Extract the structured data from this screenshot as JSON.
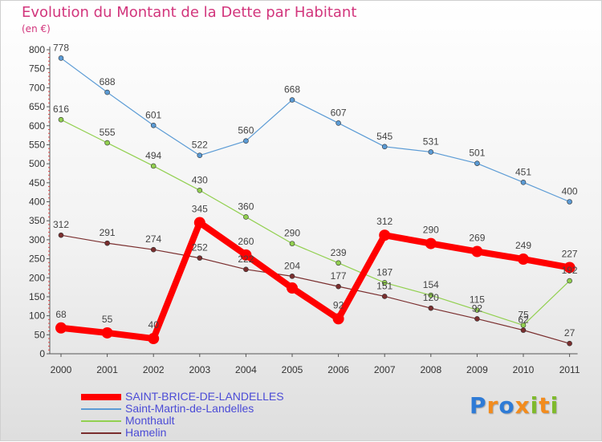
{
  "chart_data": {
    "type": "line",
    "title": "Evolution du Montant de la Dette par Habitant",
    "subtitle": "(en €)",
    "x": [
      "2000",
      "2001",
      "2002",
      "2003",
      "2004",
      "2005",
      "2006",
      "2007",
      "2008",
      "2009",
      "2010",
      "2011"
    ],
    "ylim": [
      0,
      800
    ],
    "yticks": [
      0,
      50,
      100,
      150,
      200,
      250,
      300,
      350,
      400,
      450,
      500,
      550,
      600,
      650,
      700,
      750,
      800
    ],
    "grid": false,
    "legend_position": "bottom-left",
    "series": [
      {
        "name": "SAINT-BRICE-DE-LANDELLES",
        "color": "#ff0000",
        "values": [
          68,
          55,
          40,
          345,
          260,
          173,
          92,
          312,
          290,
          269,
          249,
          227
        ],
        "labels": [
          "68",
          "55",
          "40",
          "345",
          "260",
          "",
          "92",
          "312",
          "290",
          "269",
          "249",
          "227"
        ]
      },
      {
        "name": "Saint-Martin-de-Landelles",
        "color": "#5b9bd5",
        "values": [
          778,
          688,
          601,
          522,
          560,
          668,
          607,
          545,
          531,
          501,
          451,
          400
        ],
        "labels": [
          "778",
          "688",
          "601",
          "522",
          "560",
          "668",
          "607",
          "545",
          "531",
          "501",
          "451",
          "400"
        ]
      },
      {
        "name": "Monthault",
        "color": "#92d050",
        "values": [
          616,
          555,
          494,
          430,
          360,
          290,
          239,
          187,
          154,
          115,
          75,
          192
        ],
        "labels": [
          "616",
          "555",
          "494",
          "430",
          "360",
          "290",
          "239",
          "187",
          "154",
          "115",
          "75",
          "192"
        ]
      },
      {
        "name": "Hamelin",
        "color": "#7a2e2e",
        "values": [
          312,
          291,
          274,
          252,
          222,
          204,
          177,
          151,
          120,
          92,
          62,
          27
        ],
        "labels": [
          "312",
          "291",
          "274",
          "252",
          "222",
          "204",
          "177",
          "151",
          "120",
          "92",
          "62",
          "27"
        ]
      }
    ]
  },
  "branding": {
    "logo_letters": [
      "P",
      "r",
      "o",
      "x",
      "i",
      "t",
      "i"
    ],
    "logo_colors": [
      "#2e7bd6",
      "#f28c1e",
      "#2e7bd6",
      "#f28c1e",
      "#7fba2c",
      "#f28c1e",
      "#7fba2c"
    ]
  }
}
